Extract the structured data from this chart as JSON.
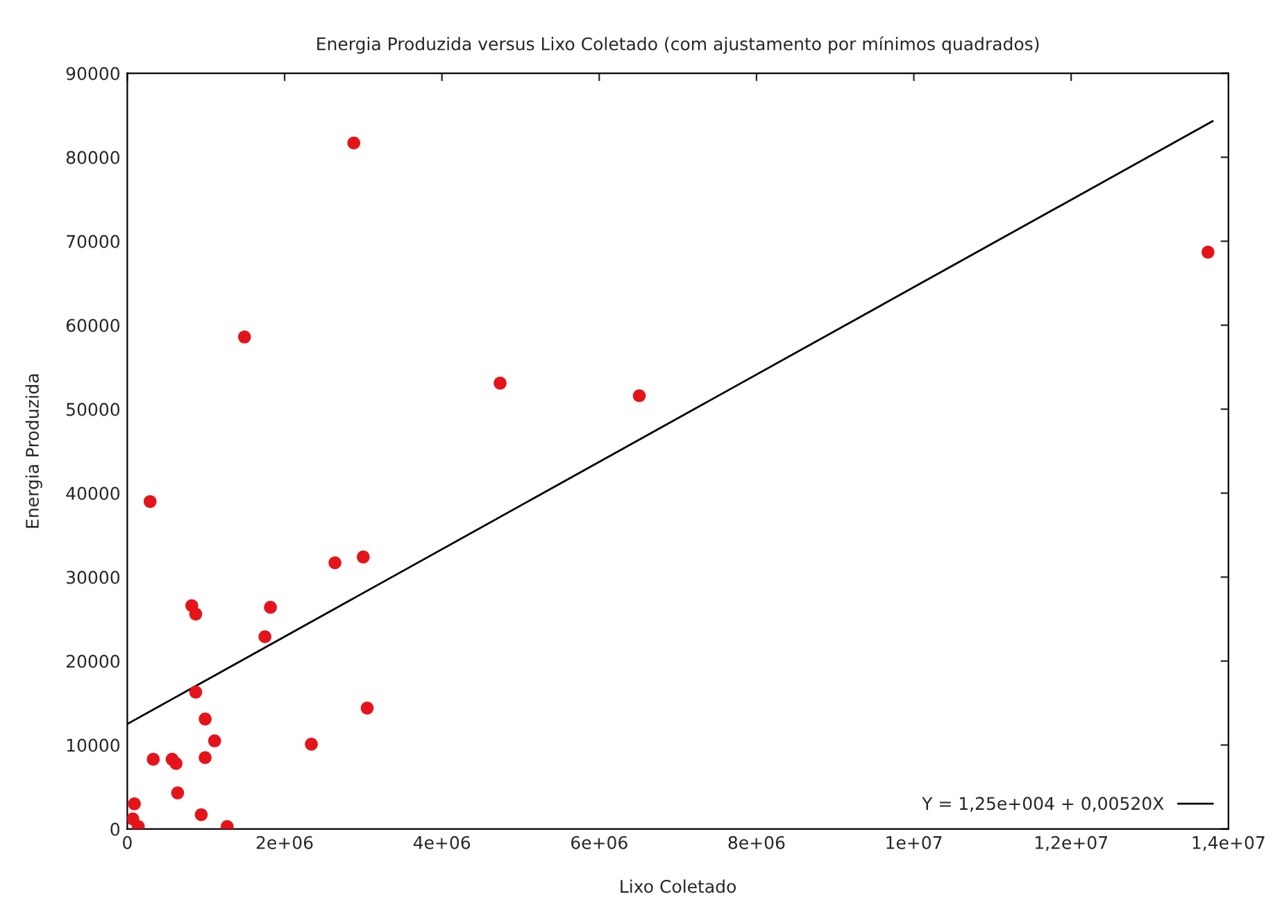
{
  "chart_data": {
    "type": "scatter",
    "title": "Energia Produzida versus Lixo Coletado (com ajustamento por mínimos quadrados)",
    "xlabel": "Lixo Coletado",
    "ylabel": "Energia Produzida",
    "series": [
      {
        "color": "#e5141b",
        "marker": "circle",
        "x": [
          90000,
          70000,
          140000,
          290000,
          330000,
          570000,
          620000,
          640000,
          820000,
          870000,
          870000,
          940000,
          990000,
          990000,
          1110000,
          1270000,
          1490000,
          1750000,
          1820000,
          2340000,
          2640000,
          2880000,
          3000000,
          3050000,
          4740000,
          6510000,
          13740000
        ],
        "values": [
          3000,
          1200,
          300,
          39000,
          8300,
          8300,
          7800,
          4300,
          26600,
          25600,
          16300,
          1700,
          13100,
          8500,
          10500,
          300,
          58600,
          22900,
          26400,
          10100,
          31700,
          81700,
          32400,
          14400,
          53100,
          51600,
          68700
        ]
      },
      {
        "type": "line",
        "name": "Y = 1,25e+004 + 0,00520X",
        "color": "#000000",
        "marker": "none",
        "line_style": "solid",
        "x": [
          0,
          13800000
        ],
        "values": [
          12500,
          84300
        ]
      }
    ],
    "xlim": [
      0,
      14000000
    ],
    "xticks": [
      0,
      {
        "value": 2000000,
        "label": "2e+06"
      },
      {
        "value": 4000000,
        "label": "4e+06"
      },
      {
        "value": 6000000,
        "label": "6e+06"
      },
      {
        "value": 8000000,
        "label": "8e+06"
      },
      {
        "value": 10000000,
        "label": "1e+07"
      },
      {
        "value": 12000000,
        "label": "1,2e+07"
      },
      {
        "value": 14000000,
        "label": "1,4e+07"
      }
    ],
    "ylim": [
      0,
      90000
    ],
    "yticks": [
      0,
      10000,
      20000,
      30000,
      40000,
      50000,
      60000,
      70000,
      80000,
      90000
    ],
    "grid": false,
    "legend": "bottom right"
  }
}
